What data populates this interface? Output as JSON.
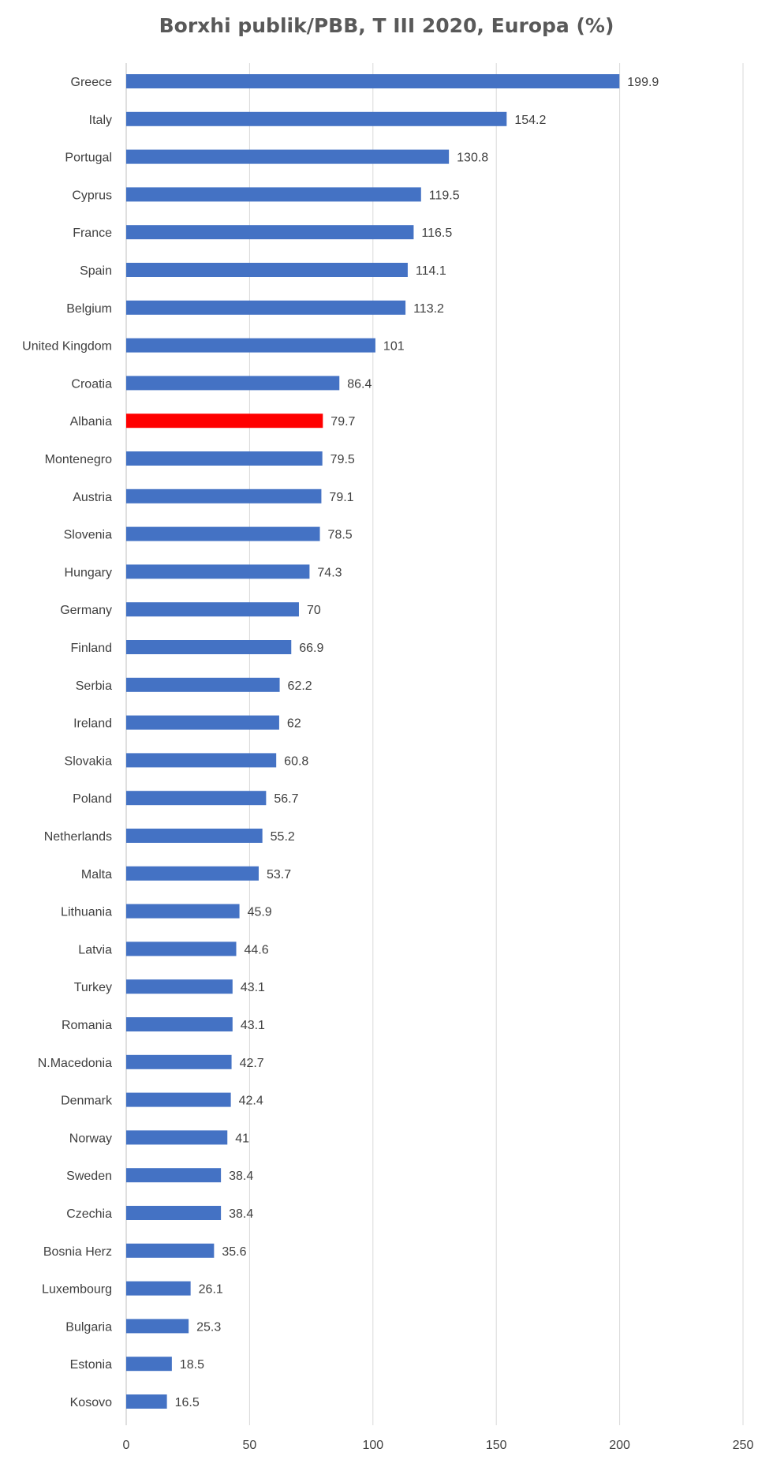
{
  "chart_data": {
    "type": "bar",
    "orientation": "horizontal",
    "title": "Borxhi publik/PBB, T III 2020, Europa (%)",
    "xlabel": "",
    "ylabel": "",
    "xlim": [
      0,
      250
    ],
    "xticks": [
      0,
      50,
      100,
      150,
      200,
      250
    ],
    "grid": true,
    "default_color": "#4472C4",
    "highlight_color": "#FF0000",
    "highlight_category": "Albania",
    "categories": [
      "Greece",
      "Italy",
      "Portugal",
      "Cyprus",
      "France",
      "Spain",
      "Belgium",
      "United Kingdom",
      "Croatia",
      "Albania",
      "Montenegro",
      "Austria",
      "Slovenia",
      "Hungary",
      "Germany",
      "Finland",
      "Serbia",
      "Ireland",
      "Slovakia",
      "Poland",
      "Netherlands",
      "Malta",
      "Lithuania",
      "Latvia",
      "Turkey",
      "Romania",
      "N.Macedonia",
      "Denmark",
      "Norway",
      "Sweden",
      "Czechia",
      "Bosnia Herz",
      "Luxembourg",
      "Bulgaria",
      "Estonia",
      "Kosovo"
    ],
    "values": [
      199.9,
      154.2,
      130.8,
      119.5,
      116.5,
      114.1,
      113.2,
      101,
      86.4,
      79.7,
      79.5,
      79.1,
      78.5,
      74.3,
      70,
      66.9,
      62.2,
      62,
      60.8,
      56.7,
      55.2,
      53.7,
      45.9,
      44.6,
      43.1,
      43.1,
      42.7,
      42.4,
      41,
      38.4,
      38.4,
      35.6,
      26.1,
      25.3,
      18.5,
      16.5
    ]
  }
}
